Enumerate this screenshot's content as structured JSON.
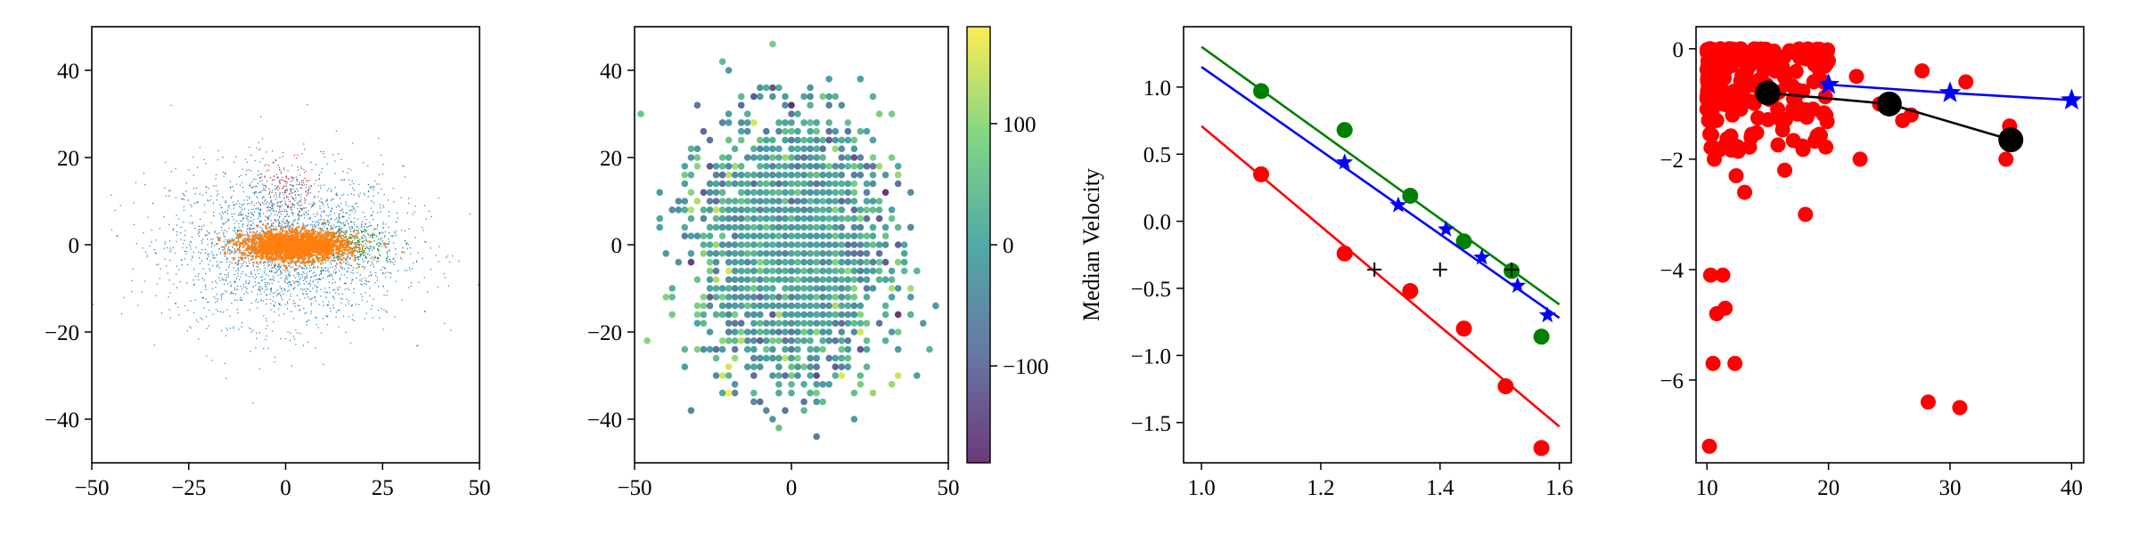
{
  "figure": {
    "background": "#ffffff"
  },
  "colors": {
    "blue": "#1f77b4",
    "orange": "#ff7f0e",
    "green": "#2ca02c",
    "red": "#d62728",
    "pure_red": "#ff0000",
    "pure_green": "#008000",
    "pure_blue": "#0000ff",
    "black": "#000000",
    "viridis": [
      "#440154",
      "#3b528b",
      "#21918c",
      "#5ec962",
      "#fde725"
    ]
  },
  "chart_data": [
    {
      "type": "scatter",
      "title": "",
      "xlabel": "",
      "ylabel": "",
      "xlim": [
        -50,
        50
      ],
      "ylim": [
        -50,
        50
      ],
      "xticks": [
        -50,
        -25,
        0,
        25,
        50
      ],
      "yticks": [
        -40,
        -20,
        0,
        20,
        40
      ],
      "xtick_labels": [
        "−50",
        "−25",
        "0",
        "25",
        "50"
      ],
      "ytick_labels": [
        "−40",
        "−20",
        "0",
        "20",
        "40"
      ],
      "grid": false,
      "series": [
        {
          "color": "blue",
          "approx_points": 2600,
          "x_spread": 15,
          "y_spread": 9,
          "x_center": 0,
          "y_center": 0
        },
        {
          "color": "red",
          "approx_points": 140,
          "x_spread": 3.5,
          "y_spread": 4,
          "x_center": 0,
          "y_center": 13
        },
        {
          "color": "pure_green",
          "approx_points": 260,
          "x_spread": 6,
          "y_spread": 2.5,
          "x_center": 17,
          "y_center": 0
        },
        {
          "color": "orange",
          "approx_points": 2200,
          "x_spread": 6.5,
          "y_spread": 1.6,
          "x_center": 2,
          "y_center": 0
        }
      ]
    },
    {
      "type": "heatmap",
      "title": "",
      "xlabel": "",
      "ylabel": "",
      "xlim": [
        -50,
        50
      ],
      "ylim": [
        -50,
        50
      ],
      "xticks": [
        -50,
        0,
        50
      ],
      "yticks": [
        -40,
        -20,
        0,
        20,
        40
      ],
      "xtick_labels": [
        "−50",
        "0",
        "50"
      ],
      "ytick_labels": [
        "−40",
        "−20",
        "0",
        "20",
        "40"
      ],
      "colorbar": {
        "range": [
          -180,
          180
        ],
        "ticks": [
          -100,
          0,
          100
        ],
        "tick_labels": [
          "−100",
          "0",
          "100"
        ],
        "colormap": "viridis"
      },
      "approx_points": 2600,
      "spread": 14
    },
    {
      "type": "line",
      "title": "",
      "xlabel": "",
      "ylabel": "Median Velocity",
      "xlim": [
        0.97,
        1.62
      ],
      "ylim": [
        -1.8,
        1.45
      ],
      "xticks": [
        1.0,
        1.2,
        1.4,
        1.6
      ],
      "yticks": [
        -1.5,
        -1.0,
        -0.5,
        0.0,
        0.5,
        1.0
      ],
      "xtick_labels": [
        "1.0",
        "1.2",
        "1.4",
        "1.6"
      ],
      "ytick_labels": [
        "−1.5",
        "−1.0",
        "−0.5",
        "0.0",
        "0.5",
        "1.0"
      ],
      "series": [
        {
          "color": "pure_green",
          "marker": "circle",
          "line": {
            "x": [
              1.0,
              1.6
            ],
            "y": [
              1.3,
              -0.62
            ]
          },
          "x": [
            1.1,
            1.24,
            1.35,
            1.44,
            1.52,
            1.57
          ],
          "y": [
            0.97,
            0.68,
            0.19,
            -0.15,
            -0.37,
            -0.86
          ]
        },
        {
          "color": "pure_blue",
          "marker": "star",
          "line": {
            "x": [
              1.0,
              1.6
            ],
            "y": [
              1.15,
              -0.72
            ]
          },
          "x": [
            1.24,
            1.33,
            1.41,
            1.47,
            1.53,
            1.58
          ],
          "y": [
            0.44,
            0.12,
            -0.06,
            -0.27,
            -0.48,
            -0.7
          ]
        },
        {
          "color": "pure_red",
          "marker": "circle",
          "line": {
            "x": [
              1.0,
              1.6
            ],
            "y": [
              0.71,
              -1.53
            ]
          },
          "x": [
            1.1,
            1.24,
            1.35,
            1.44,
            1.51,
            1.57
          ],
          "y": [
            0.35,
            -0.24,
            -0.52,
            -0.8,
            -1.23,
            -1.69
          ]
        },
        {
          "color": "black",
          "marker": "plus",
          "x": [
            1.29,
            1.4,
            1.52
          ],
          "y": [
            -0.36,
            -0.36,
            -0.36
          ]
        }
      ]
    },
    {
      "type": "scatter",
      "title": "",
      "xlabel": "",
      "ylabel": "",
      "xlim": [
        9.1,
        41.0
      ],
      "ylim": [
        -7.5,
        0.4
      ],
      "xticks": [
        10,
        20,
        30,
        40
      ],
      "yticks": [
        -6,
        -4,
        -2,
        0
      ],
      "xtick_labels": [
        "10",
        "20",
        "30",
        "40"
      ],
      "ytick_labels": [
        "−6",
        "−4",
        "−2",
        "0"
      ],
      "series": [
        {
          "color": "pure_red",
          "marker": "circle",
          "x": [
            10.2,
            10.5,
            10.8,
            11.5,
            12.3,
            11.3,
            10.3,
            10.6,
            28.2,
            30.8,
            18.1,
            16.4,
            13.1,
            22.6,
            10.6,
            12.4,
            34.6,
            34.9,
            26.1,
            26.8,
            24.2,
            27.7,
            31.3,
            22.3,
            19.6,
            12.1
          ],
          "y": [
            -7.2,
            -5.7,
            -4.8,
            -4.7,
            -5.7,
            -4.1,
            -4.1,
            -2.0,
            -6.4,
            -6.5,
            -3.0,
            -2.2,
            -2.6,
            -2.0,
            -1.8,
            -2.3,
            -2.0,
            -1.4,
            -1.3,
            -1.2,
            -1.0,
            -0.4,
            -0.6,
            -0.5,
            -0.6,
            -1.2
          ],
          "cluster": {
            "x_range": [
              10,
              20
            ],
            "y_range": [
              -1.9,
              0
            ],
            "approx_points": 220
          }
        },
        {
          "color": "pure_blue",
          "marker": "star",
          "x": [
            20,
            30,
            40
          ],
          "y": [
            -0.65,
            -0.8,
            -0.93
          ]
        },
        {
          "color": "black",
          "marker": "circle",
          "x": [
            15,
            25,
            35
          ],
          "y": [
            -0.8,
            -1.0,
            -1.65
          ]
        }
      ]
    }
  ]
}
